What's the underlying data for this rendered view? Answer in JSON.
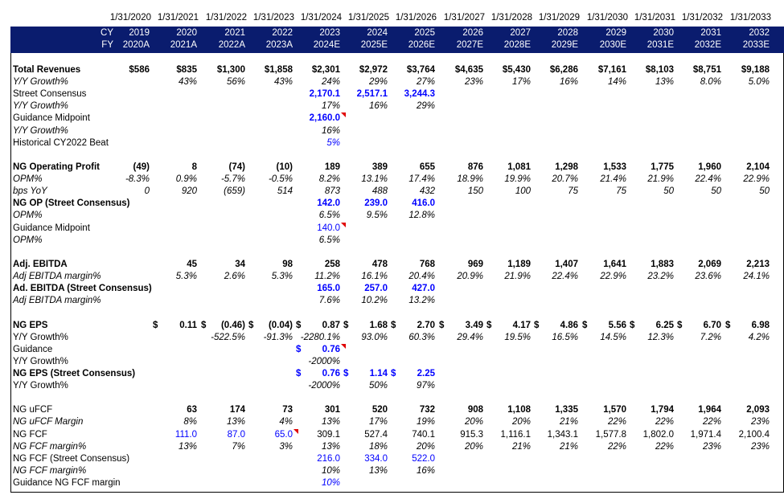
{
  "dates": [
    "1/31/2020",
    "1/31/2021",
    "1/31/2022",
    "1/31/2023",
    "1/31/2024",
    "1/31/2025",
    "1/31/2026",
    "1/31/2027",
    "1/31/2028",
    "1/31/2029",
    "1/31/2030",
    "1/31/2031",
    "1/31/2032",
    "1/31/2033"
  ],
  "header": {
    "cy_label": "CY",
    "fy_label": "FY",
    "cy": [
      "2019",
      "2020",
      "2021",
      "2022",
      "2023",
      "2024",
      "2025",
      "2026",
      "2027",
      "2028",
      "2029",
      "2030",
      "2031",
      "2032"
    ],
    "fy": [
      "2020A",
      "2021A",
      "2022A",
      "2023A",
      "2024E",
      "2025E",
      "2026E",
      "2027E",
      "2028E",
      "2029E",
      "2030E",
      "2031E",
      "2032E",
      "2033E"
    ]
  },
  "colors": {
    "header_bg": "#0a1c6e",
    "estimate_blue": "#0000ff",
    "comment_marker": "#e00000"
  },
  "rows": [
    {
      "label": "Total Revenues",
      "style": "bold",
      "values": [
        "$586",
        "$835",
        "$1,300",
        "$1,858",
        "$2,301",
        "$2,972",
        "$3,764",
        "$4,635",
        "$5,430",
        "$6,286",
        "$7,161",
        "$8,103",
        "$8,751",
        "$9,188"
      ]
    },
    {
      "label": "Y/Y Growth%",
      "style": "ital",
      "values": [
        "",
        "43%",
        "56%",
        "43%",
        "24%",
        "29%",
        "27%",
        "23%",
        "17%",
        "16%",
        "14%",
        "13%",
        "8.0%",
        "5.0%"
      ]
    },
    {
      "label": "Street Consensus",
      "style": "",
      "values": [
        "",
        "",
        "",
        "",
        "2,170.1",
        "2,517.1",
        "3,244.3",
        "",
        "",
        "",
        "",
        "",
        "",
        ""
      ],
      "blue": [
        4,
        5,
        6
      ],
      "bold_cells": [
        4,
        5,
        6
      ]
    },
    {
      "label": "Y/Y Growth%",
      "style": "ital",
      "values": [
        "",
        "",
        "",
        "",
        "17%",
        "16%",
        "29%",
        "",
        "",
        "",
        "",
        "",
        "",
        ""
      ]
    },
    {
      "label": "Guidance Midpoint",
      "style": "",
      "values": [
        "",
        "",
        "",
        "",
        "2,160.0",
        "",
        "",
        "",
        "",
        "",
        "",
        "",
        "",
        ""
      ],
      "blue": [
        4
      ],
      "bold_cells": [
        4
      ],
      "marker": [
        4
      ]
    },
    {
      "label": "Y/Y Growth%",
      "style": "ital",
      "values": [
        "",
        "",
        "",
        "",
        "16%",
        "",
        "",
        "",
        "",
        "",
        "",
        "",
        "",
        ""
      ]
    },
    {
      "label": "Historical CY2022 Beat",
      "style": "",
      "values": [
        "",
        "",
        "",
        "",
        "5%",
        "",
        "",
        "",
        "",
        "",
        "",
        "",
        "",
        ""
      ],
      "blue": [
        4
      ],
      "ital_cells": [
        4
      ]
    },
    {
      "label": "",
      "values": []
    },
    {
      "label": "NG Operating Profit",
      "style": "bold",
      "values": [
        "(49)",
        "8",
        "(74)",
        "(10)",
        "189",
        "389",
        "655",
        "876",
        "1,081",
        "1,298",
        "1,533",
        "1,775",
        "1,960",
        "2,104"
      ]
    },
    {
      "label": "OPM%",
      "style": "ital",
      "values": [
        "-8.3%",
        "0.9%",
        "-5.7%",
        "-0.5%",
        "8.2%",
        "13.1%",
        "17.4%",
        "18.9%",
        "19.9%",
        "20.7%",
        "21.4%",
        "21.9%",
        "22.4%",
        "22.9%"
      ]
    },
    {
      "label": "bps YoY",
      "style": "ital",
      "values": [
        "0",
        "920",
        "(659)",
        "514",
        "873",
        "488",
        "432",
        "150",
        "100",
        "75",
        "75",
        "50",
        "50",
        "50"
      ]
    },
    {
      "label": "NG OP (Street Consensus)",
      "style": "bold",
      "values": [
        "",
        "",
        "",
        "",
        "142.0",
        "239.0",
        "416.0",
        "",
        "",
        "",
        "",
        "",
        "",
        ""
      ],
      "blue": [
        4,
        5,
        6
      ],
      "bold_cells": [
        4,
        5,
        6
      ]
    },
    {
      "label": "OPM%",
      "style": "ital",
      "values": [
        "",
        "",
        "",
        "",
        "6.5%",
        "9.5%",
        "12.8%",
        "",
        "",
        "",
        "",
        "",
        "",
        ""
      ]
    },
    {
      "label": "Guidance Midpoint",
      "style": "",
      "values": [
        "",
        "",
        "",
        "",
        "140.0",
        "",
        "",
        "",
        "",
        "",
        "",
        "",
        "",
        ""
      ],
      "blue": [
        4
      ],
      "marker": [
        4
      ]
    },
    {
      "label": "OPM%",
      "style": "ital",
      "values": [
        "",
        "",
        "",
        "",
        "6.5%",
        "",
        "",
        "",
        "",
        "",
        "",
        "",
        "",
        ""
      ]
    },
    {
      "label": "",
      "values": []
    },
    {
      "label": "Adj. EBITDA",
      "style": "bold",
      "values": [
        "45",
        "34",
        "98",
        "258",
        "478",
        "768",
        "969",
        "1,189",
        "1,407",
        "1,641",
        "1,883",
        "2,069",
        "2,213",
        ""
      ],
      "shift": 1
    },
    {
      "label": "Adj EBITDA margin%",
      "style": "ital",
      "values": [
        "5.3%",
        "2.6%",
        "5.3%",
        "11.2%",
        "16.1%",
        "20.4%",
        "20.9%",
        "21.9%",
        "22.4%",
        "22.9%",
        "23.2%",
        "23.6%",
        "24.1%",
        ""
      ],
      "shift": 1
    },
    {
      "label": "Ad. EBITDA (Street Consensus)",
      "style": "bold",
      "values": [
        "",
        "",
        "",
        "",
        "165.0",
        "257.0",
        "427.0",
        "",
        "",
        "",
        "",
        "",
        "",
        ""
      ],
      "blue": [
        4,
        5,
        6
      ],
      "bold_cells": [
        4,
        5,
        6
      ]
    },
    {
      "label": "Adj EBITDA margin%",
      "style": "ital",
      "values": [
        "",
        "",
        "",
        "",
        "7.6%",
        "10.2%",
        "13.2%",
        "",
        "",
        "",
        "",
        "",
        "",
        ""
      ]
    },
    {
      "label": "",
      "values": []
    },
    {
      "label": "NG EPS",
      "style": "bold",
      "values": [
        "0.11",
        "(0.46)",
        "(0.04)",
        "0.87",
        "1.68",
        "2.70",
        "3.49",
        "4.17",
        "4.86",
        "5.56",
        "6.25",
        "6.70",
        "6.98",
        ""
      ],
      "shift": 1,
      "dollar": true
    },
    {
      "label": "Y/Y Growth%",
      "style": "",
      "values": [
        "",
        "-522.5%",
        "-91.3%",
        "-2280.1%",
        "93.0%",
        "60.3%",
        "29.4%",
        "19.5%",
        "16.5%",
        "14.5%",
        "12.3%",
        "7.2%",
        "4.2%",
        ""
      ],
      "shift": 1,
      "ital_all": true
    },
    {
      "label": "Guidance",
      "style": "",
      "values": [
        "",
        "",
        "",
        "",
        "0.76",
        "",
        "",
        "",
        "",
        "",
        "",
        "",
        "",
        ""
      ],
      "blue": [
        4
      ],
      "bold_cells": [
        4
      ],
      "marker": [
        4
      ],
      "dollar_cells": [
        4
      ]
    },
    {
      "label": "Y/Y Growth%",
      "style": "",
      "values": [
        "",
        "",
        "",
        "",
        "-2000%",
        "",
        "",
        "",
        "",
        "",
        "",
        "",
        "",
        ""
      ],
      "ital_cells": [
        4
      ]
    },
    {
      "label": "NG EPS (Street Consensus)",
      "style": "bold",
      "values": [
        "",
        "",
        "",
        "",
        "0.76",
        "1.14",
        "2.25",
        "",
        "",
        "",
        "",
        "",
        "",
        ""
      ],
      "blue": [
        4,
        5,
        6
      ],
      "bold_cells": [
        4,
        5,
        6
      ],
      "dollar_cells": [
        4,
        5,
        6
      ]
    },
    {
      "label": "Y/Y Growth%",
      "style": "",
      "values": [
        "",
        "",
        "",
        "",
        "-2000%",
        "50%",
        "97%",
        "",
        "",
        "",
        "",
        "",
        "",
        ""
      ],
      "ital_cells": [
        4,
        5,
        6
      ]
    },
    {
      "label": "",
      "values": []
    },
    {
      "label": "NG uFCF",
      "style": "",
      "values": [
        "63",
        "174",
        "73",
        "301",
        "520",
        "732",
        "908",
        "1,108",
        "1,335",
        "1,570",
        "1,794",
        "1,964",
        "2,093",
        ""
      ],
      "shift": 1,
      "bold_all": true
    },
    {
      "label": "NG uFCF Margin",
      "style": "ital",
      "values": [
        "8%",
        "13%",
        "4%",
        "13%",
        "17%",
        "19%",
        "20%",
        "20%",
        "21%",
        "22%",
        "22%",
        "22%",
        "23%",
        ""
      ],
      "shift": 1
    },
    {
      "label": "NG FCF",
      "style": "",
      "values": [
        "111.0",
        "87.0",
        "65.0",
        "309.1",
        "527.4",
        "740.1",
        "915.3",
        "1,116.1",
        "1,343.1",
        "1,577.8",
        "1,802.0",
        "1,971.4",
        "2,100.4",
        ""
      ],
      "shift": 1,
      "blue": [
        0,
        1,
        2
      ],
      "marker": [
        2
      ]
    },
    {
      "label": "NG FCF margin%",
      "style": "ital",
      "values": [
        "13%",
        "7%",
        "3%",
        "13%",
        "18%",
        "20%",
        "20%",
        "21%",
        "21%",
        "22%",
        "22%",
        "23%",
        "23%",
        ""
      ],
      "shift": 1
    },
    {
      "label": "NG FCF (Street Consensus)",
      "style": "",
      "values": [
        "",
        "",
        "",
        "",
        "216.0",
        "334.0",
        "522.0",
        "",
        "",
        "",
        "",
        "",
        "",
        ""
      ],
      "blue": [
        4,
        5,
        6
      ]
    },
    {
      "label": "NG FCF margin%",
      "style": "ital",
      "values": [
        "",
        "",
        "",
        "",
        "10%",
        "13%",
        "16%",
        "",
        "",
        "",
        "",
        "",
        "",
        ""
      ]
    },
    {
      "label": "Guidance NG FCF margin",
      "style": "",
      "values": [
        "",
        "",
        "",
        "",
        "10%",
        "",
        "",
        "",
        "",
        "",
        "",
        "",
        "",
        ""
      ],
      "blue": [
        4
      ],
      "ital_cells": [
        4
      ]
    }
  ]
}
